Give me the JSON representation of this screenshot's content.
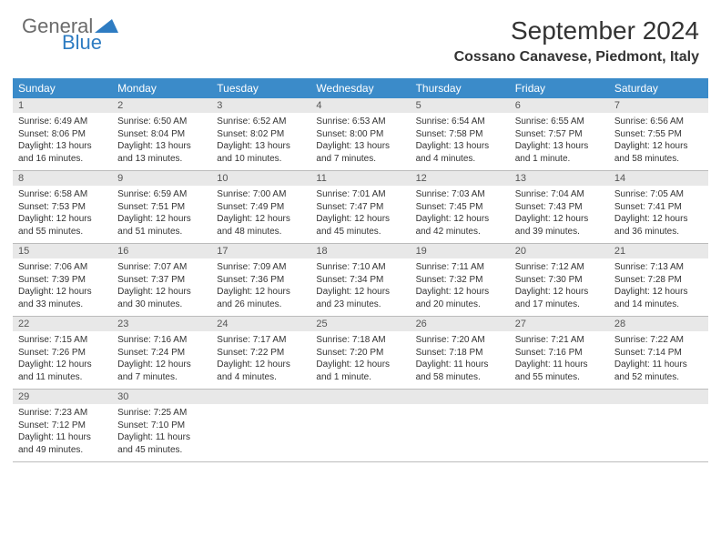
{
  "brand": {
    "general": "General",
    "blue": "Blue",
    "triangle_color": "#2e7cc2"
  },
  "title": "September 2024",
  "location": "Cossano Canavese, Piedmont, Italy",
  "colors": {
    "header_bg": "#3b8bc9",
    "daynum_bg": "#e8e8e8",
    "rule": "#bcbcbc",
    "text": "#333333",
    "brand_gray": "#6b6b6b"
  },
  "weekdays": [
    "Sunday",
    "Monday",
    "Tuesday",
    "Wednesday",
    "Thursday",
    "Friday",
    "Saturday"
  ],
  "weeks": [
    [
      {
        "n": "1",
        "sr": "Sunrise: 6:49 AM",
        "ss": "Sunset: 8:06 PM",
        "d1": "Daylight: 13 hours",
        "d2": "and 16 minutes."
      },
      {
        "n": "2",
        "sr": "Sunrise: 6:50 AM",
        "ss": "Sunset: 8:04 PM",
        "d1": "Daylight: 13 hours",
        "d2": "and 13 minutes."
      },
      {
        "n": "3",
        "sr": "Sunrise: 6:52 AM",
        "ss": "Sunset: 8:02 PM",
        "d1": "Daylight: 13 hours",
        "d2": "and 10 minutes."
      },
      {
        "n": "4",
        "sr": "Sunrise: 6:53 AM",
        "ss": "Sunset: 8:00 PM",
        "d1": "Daylight: 13 hours",
        "d2": "and 7 minutes."
      },
      {
        "n": "5",
        "sr": "Sunrise: 6:54 AM",
        "ss": "Sunset: 7:58 PM",
        "d1": "Daylight: 13 hours",
        "d2": "and 4 minutes."
      },
      {
        "n": "6",
        "sr": "Sunrise: 6:55 AM",
        "ss": "Sunset: 7:57 PM",
        "d1": "Daylight: 13 hours",
        "d2": "and 1 minute."
      },
      {
        "n": "7",
        "sr": "Sunrise: 6:56 AM",
        "ss": "Sunset: 7:55 PM",
        "d1": "Daylight: 12 hours",
        "d2": "and 58 minutes."
      }
    ],
    [
      {
        "n": "8",
        "sr": "Sunrise: 6:58 AM",
        "ss": "Sunset: 7:53 PM",
        "d1": "Daylight: 12 hours",
        "d2": "and 55 minutes."
      },
      {
        "n": "9",
        "sr": "Sunrise: 6:59 AM",
        "ss": "Sunset: 7:51 PM",
        "d1": "Daylight: 12 hours",
        "d2": "and 51 minutes."
      },
      {
        "n": "10",
        "sr": "Sunrise: 7:00 AM",
        "ss": "Sunset: 7:49 PM",
        "d1": "Daylight: 12 hours",
        "d2": "and 48 minutes."
      },
      {
        "n": "11",
        "sr": "Sunrise: 7:01 AM",
        "ss": "Sunset: 7:47 PM",
        "d1": "Daylight: 12 hours",
        "d2": "and 45 minutes."
      },
      {
        "n": "12",
        "sr": "Sunrise: 7:03 AM",
        "ss": "Sunset: 7:45 PM",
        "d1": "Daylight: 12 hours",
        "d2": "and 42 minutes."
      },
      {
        "n": "13",
        "sr": "Sunrise: 7:04 AM",
        "ss": "Sunset: 7:43 PM",
        "d1": "Daylight: 12 hours",
        "d2": "and 39 minutes."
      },
      {
        "n": "14",
        "sr": "Sunrise: 7:05 AM",
        "ss": "Sunset: 7:41 PM",
        "d1": "Daylight: 12 hours",
        "d2": "and 36 minutes."
      }
    ],
    [
      {
        "n": "15",
        "sr": "Sunrise: 7:06 AM",
        "ss": "Sunset: 7:39 PM",
        "d1": "Daylight: 12 hours",
        "d2": "and 33 minutes."
      },
      {
        "n": "16",
        "sr": "Sunrise: 7:07 AM",
        "ss": "Sunset: 7:37 PM",
        "d1": "Daylight: 12 hours",
        "d2": "and 30 minutes."
      },
      {
        "n": "17",
        "sr": "Sunrise: 7:09 AM",
        "ss": "Sunset: 7:36 PM",
        "d1": "Daylight: 12 hours",
        "d2": "and 26 minutes."
      },
      {
        "n": "18",
        "sr": "Sunrise: 7:10 AM",
        "ss": "Sunset: 7:34 PM",
        "d1": "Daylight: 12 hours",
        "d2": "and 23 minutes."
      },
      {
        "n": "19",
        "sr": "Sunrise: 7:11 AM",
        "ss": "Sunset: 7:32 PM",
        "d1": "Daylight: 12 hours",
        "d2": "and 20 minutes."
      },
      {
        "n": "20",
        "sr": "Sunrise: 7:12 AM",
        "ss": "Sunset: 7:30 PM",
        "d1": "Daylight: 12 hours",
        "d2": "and 17 minutes."
      },
      {
        "n": "21",
        "sr": "Sunrise: 7:13 AM",
        "ss": "Sunset: 7:28 PM",
        "d1": "Daylight: 12 hours",
        "d2": "and 14 minutes."
      }
    ],
    [
      {
        "n": "22",
        "sr": "Sunrise: 7:15 AM",
        "ss": "Sunset: 7:26 PM",
        "d1": "Daylight: 12 hours",
        "d2": "and 11 minutes."
      },
      {
        "n": "23",
        "sr": "Sunrise: 7:16 AM",
        "ss": "Sunset: 7:24 PM",
        "d1": "Daylight: 12 hours",
        "d2": "and 7 minutes."
      },
      {
        "n": "24",
        "sr": "Sunrise: 7:17 AM",
        "ss": "Sunset: 7:22 PM",
        "d1": "Daylight: 12 hours",
        "d2": "and 4 minutes."
      },
      {
        "n": "25",
        "sr": "Sunrise: 7:18 AM",
        "ss": "Sunset: 7:20 PM",
        "d1": "Daylight: 12 hours",
        "d2": "and 1 minute."
      },
      {
        "n": "26",
        "sr": "Sunrise: 7:20 AM",
        "ss": "Sunset: 7:18 PM",
        "d1": "Daylight: 11 hours",
        "d2": "and 58 minutes."
      },
      {
        "n": "27",
        "sr": "Sunrise: 7:21 AM",
        "ss": "Sunset: 7:16 PM",
        "d1": "Daylight: 11 hours",
        "d2": "and 55 minutes."
      },
      {
        "n": "28",
        "sr": "Sunrise: 7:22 AM",
        "ss": "Sunset: 7:14 PM",
        "d1": "Daylight: 11 hours",
        "d2": "and 52 minutes."
      }
    ],
    [
      {
        "n": "29",
        "sr": "Sunrise: 7:23 AM",
        "ss": "Sunset: 7:12 PM",
        "d1": "Daylight: 11 hours",
        "d2": "and 49 minutes."
      },
      {
        "n": "30",
        "sr": "Sunrise: 7:25 AM",
        "ss": "Sunset: 7:10 PM",
        "d1": "Daylight: 11 hours",
        "d2": "and 45 minutes."
      },
      {
        "empty": true
      },
      {
        "empty": true
      },
      {
        "empty": true
      },
      {
        "empty": true
      },
      {
        "empty": true
      }
    ]
  ]
}
